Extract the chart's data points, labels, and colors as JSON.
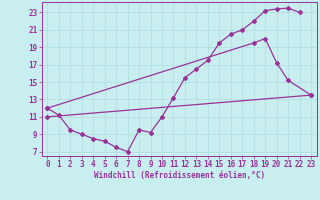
{
  "xlabel": "Windchill (Refroidissement éolien,°C)",
  "line_color": "#993399",
  "bg_color": "#c8eef0",
  "grid_color": "#b0dde0",
  "curve1": {
    "x": [
      0,
      1,
      2,
      3,
      4,
      5,
      6,
      7,
      8,
      9,
      10,
      11,
      12,
      13,
      14,
      15,
      16,
      17,
      18,
      19,
      20,
      21,
      22
    ],
    "y": [
      12.0,
      11.2,
      9.5,
      9.0,
      8.5,
      8.2,
      7.5,
      7.0,
      9.5,
      9.2,
      11.0,
      13.2,
      15.5,
      16.5,
      17.5,
      19.5,
      20.5,
      21.0,
      22.0,
      23.2,
      23.4,
      23.5,
      23.0
    ]
  },
  "curve2": {
    "x": [
      0,
      18,
      19,
      20,
      21,
      23
    ],
    "y": [
      12.0,
      19.5,
      20.0,
      17.2,
      15.2,
      13.5
    ]
  },
  "curve3": {
    "x": [
      0,
      23
    ],
    "y": [
      11.0,
      13.5
    ]
  },
  "xlim": [
    -0.5,
    23.5
  ],
  "ylim": [
    6.5,
    24.2
  ],
  "xticks": [
    0,
    1,
    2,
    3,
    4,
    5,
    6,
    7,
    8,
    9,
    10,
    11,
    12,
    13,
    14,
    15,
    16,
    17,
    18,
    19,
    20,
    21,
    22,
    23
  ],
  "yticks": [
    7,
    9,
    11,
    13,
    15,
    17,
    19,
    21,
    23
  ],
  "xlabel_fontsize": 5.5,
  "tick_fontsize": 5.5
}
